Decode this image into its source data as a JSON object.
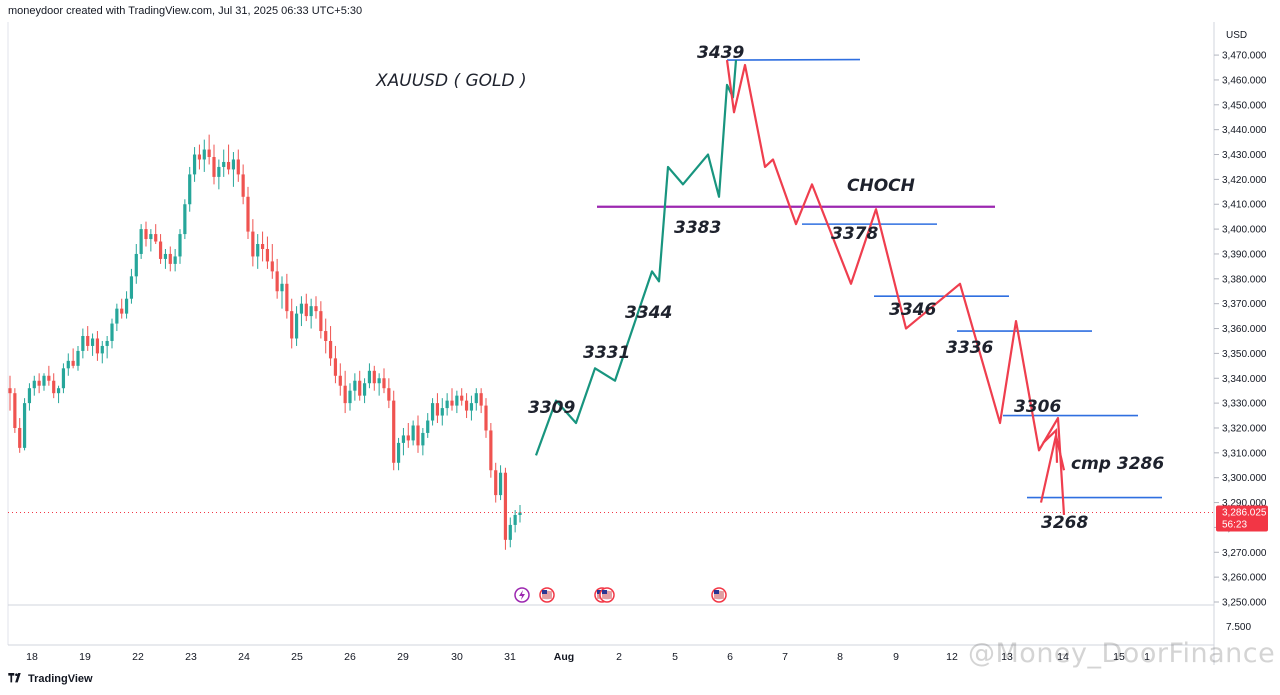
{
  "header": {
    "credit": "moneydoor created with TradingView.com, Jul 31, 2025 06:33 UTC+5:30"
  },
  "footer": {
    "brand": "TradingView"
  },
  "watermark": {
    "text": "@Money_DoorFinance"
  },
  "chart_data": {
    "type": "line",
    "symbol_title": "XAUUSD ( GOLD )",
    "currency": "USD",
    "y_ticks": [
      "3,470.000",
      "3,460.000",
      "3,450.000",
      "3,440.000",
      "3,430.000",
      "3,420.000",
      "3,410.000",
      "3,400.000",
      "3,390.000",
      "3,380.000",
      "3,370.000",
      "3,360.000",
      "3,350.000",
      "3,340.000",
      "3,330.000",
      "3,320.000",
      "3,310.000",
      "3,300.000",
      "3,290.000",
      "3,280.000",
      "3,270.000",
      "3,260.000",
      "3,250.000"
    ],
    "ylim": [
      3250,
      3470
    ],
    "x_ticks": [
      "18",
      "19",
      "22",
      "23",
      "24",
      "25",
      "26",
      "29",
      "30",
      "31",
      "Aug",
      "2",
      "5",
      "6",
      "7",
      "8",
      "9",
      "12",
      "13",
      "14",
      "15",
      "1"
    ],
    "volume_pane_label": "7.500",
    "current_price": {
      "value": "3,286.025",
      "countdown": "56:23",
      "price": 3286.025
    },
    "colors": {
      "up": "#26a69a",
      "down": "#ef5350",
      "projection_up": "#18957f",
      "projection_down": "#ef3e4e",
      "levels": "#2f6fe0",
      "choch": "#9c27b0",
      "price_line": "#f23645"
    },
    "candles_ohlc_note": "",
    "candles": [
      [
        3336,
        3341,
        3327,
        3334
      ],
      [
        3334,
        3336,
        3318,
        3320
      ],
      [
        3320,
        3324,
        3310,
        3312
      ],
      [
        3312,
        3332,
        3311,
        3330
      ],
      [
        3330,
        3338,
        3327,
        3336
      ],
      [
        3336,
        3341,
        3333,
        3339
      ],
      [
        3339,
        3342,
        3334,
        3337
      ],
      [
        3337,
        3342,
        3335,
        3341
      ],
      [
        3341,
        3345,
        3337,
        3339
      ],
      [
        3339,
        3342,
        3332,
        3334
      ],
      [
        3334,
        3337,
        3330,
        3336
      ],
      [
        3336,
        3346,
        3334,
        3344
      ],
      [
        3344,
        3350,
        3341,
        3347
      ],
      [
        3347,
        3352,
        3344,
        3345
      ],
      [
        3345,
        3353,
        3343,
        3351
      ],
      [
        3351,
        3360,
        3348,
        3357
      ],
      [
        3357,
        3361,
        3351,
        3353
      ],
      [
        3353,
        3358,
        3349,
        3356
      ],
      [
        3356,
        3359,
        3347,
        3350
      ],
      [
        3350,
        3355,
        3346,
        3353
      ],
      [
        3353,
        3357,
        3348,
        3355
      ],
      [
        3355,
        3364,
        3352,
        3362
      ],
      [
        3362,
        3370,
        3359,
        3368
      ],
      [
        3368,
        3372,
        3364,
        3366
      ],
      [
        3366,
        3375,
        3364,
        3372
      ],
      [
        3372,
        3384,
        3370,
        3381
      ],
      [
        3381,
        3394,
        3378,
        3390
      ],
      [
        3390,
        3402,
        3388,
        3400
      ],
      [
        3400,
        3403,
        3393,
        3396
      ],
      [
        3396,
        3400,
        3391,
        3398
      ],
      [
        3398,
        3402,
        3394,
        3395
      ],
      [
        3395,
        3398,
        3386,
        3388
      ],
      [
        3388,
        3392,
        3384,
        3390
      ],
      [
        3390,
        3393,
        3383,
        3386
      ],
      [
        3386,
        3392,
        3383,
        3389
      ],
      [
        3389,
        3400,
        3386,
        3398
      ],
      [
        3398,
        3412,
        3396,
        3410
      ],
      [
        3410,
        3425,
        3407,
        3422
      ],
      [
        3422,
        3433,
        3419,
        3430
      ],
      [
        3430,
        3434,
        3424,
        3428
      ],
      [
        3428,
        3436,
        3423,
        3432
      ],
      [
        3432,
        3438,
        3426,
        3429
      ],
      [
        3429,
        3434,
        3418,
        3421
      ],
      [
        3421,
        3428,
        3416,
        3425
      ],
      [
        3425,
        3432,
        3421,
        3427
      ],
      [
        3427,
        3434,
        3422,
        3424
      ],
      [
        3424,
        3431,
        3417,
        3428
      ],
      [
        3428,
        3432,
        3419,
        3422
      ],
      [
        3422,
        3426,
        3410,
        3413
      ],
      [
        3413,
        3417,
        3396,
        3399
      ],
      [
        3399,
        3404,
        3385,
        3389
      ],
      [
        3389,
        3398,
        3384,
        3394
      ],
      [
        3394,
        3399,
        3387,
        3392
      ],
      [
        3392,
        3397,
        3384,
        3387
      ],
      [
        3387,
        3394,
        3380,
        3383
      ],
      [
        3383,
        3388,
        3372,
        3375
      ],
      [
        3375,
        3381,
        3368,
        3378
      ],
      [
        3378,
        3382,
        3364,
        3367
      ],
      [
        3367,
        3372,
        3352,
        3356
      ],
      [
        3356,
        3369,
        3353,
        3366
      ],
      [
        3366,
        3373,
        3361,
        3370
      ],
      [
        3370,
        3374,
        3363,
        3365
      ],
      [
        3365,
        3372,
        3360,
        3369
      ],
      [
        3369,
        3373,
        3364,
        3367
      ],
      [
        3367,
        3371,
        3356,
        3359
      ],
      [
        3359,
        3364,
        3350,
        3355
      ],
      [
        3355,
        3361,
        3345,
        3348
      ],
      [
        3348,
        3353,
        3338,
        3341
      ],
      [
        3341,
        3346,
        3333,
        3337
      ],
      [
        3337,
        3343,
        3326,
        3330
      ],
      [
        3330,
        3338,
        3327,
        3335
      ],
      [
        3335,
        3342,
        3331,
        3339
      ],
      [
        3339,
        3343,
        3331,
        3333
      ],
      [
        3333,
        3340,
        3330,
        3338
      ],
      [
        3338,
        3346,
        3336,
        3343
      ],
      [
        3343,
        3345,
        3335,
        3338
      ],
      [
        3338,
        3342,
        3333,
        3340
      ],
      [
        3340,
        3344,
        3334,
        3336
      ],
      [
        3336,
        3340,
        3328,
        3331
      ],
      [
        3331,
        3335,
        3303,
        3306
      ],
      [
        3306,
        3316,
        3303,
        3314
      ],
      [
        3314,
        3320,
        3309,
        3317
      ],
      [
        3317,
        3322,
        3312,
        3315
      ],
      [
        3315,
        3323,
        3313,
        3321
      ],
      [
        3321,
        3325,
        3310,
        3313
      ],
      [
        3313,
        3320,
        3309,
        3318
      ],
      [
        3318,
        3326,
        3316,
        3323
      ],
      [
        3323,
        3332,
        3321,
        3330
      ],
      [
        3330,
        3334,
        3322,
        3325
      ],
      [
        3325,
        3332,
        3321,
        3328
      ],
      [
        3328,
        3334,
        3325,
        3331
      ],
      [
        3331,
        3336,
        3327,
        3329
      ],
      [
        3329,
        3335,
        3326,
        3333
      ],
      [
        3333,
        3336,
        3329,
        3331
      ],
      [
        3331,
        3334,
        3324,
        3327
      ],
      [
        3327,
        3333,
        3323,
        3330
      ],
      [
        3330,
        3336,
        3327,
        3334
      ],
      [
        3334,
        3336,
        3326,
        3329
      ],
      [
        3329,
        3332,
        3316,
        3319
      ],
      [
        3319,
        3322,
        3300,
        3303
      ],
      [
        3303,
        3306,
        3290,
        3293
      ],
      [
        3293,
        3305,
        3291,
        3302
      ],
      [
        3302,
        3304,
        3271,
        3275
      ],
      [
        3275,
        3284,
        3272,
        3281
      ],
      [
        3281,
        3287,
        3278,
        3285
      ],
      [
        3285,
        3289,
        3282,
        3286
      ]
    ],
    "projection_up_path": [
      3309,
      3331,
      3322,
      3344,
      3339,
      3383,
      3379,
      3425,
      3418,
      3430,
      3413,
      3458,
      3453,
      3468
    ],
    "projection_down_path": [
      3468,
      3447,
      3466,
      3425,
      3428,
      3402,
      3418,
      3378,
      3408,
      3360,
      3378,
      3322,
      3363,
      3311,
      3324,
      3285,
      3315,
      3310
    ],
    "annotations": [
      "3439",
      "3383",
      "3378",
      "CHOCH",
      "3344",
      "3331",
      "3309",
      "3346",
      "3336",
      "3306",
      "cmp 3286",
      "3268"
    ],
    "levels": [
      {
        "label": "3439",
        "price": 3468
      },
      {
        "label": "CHOCH",
        "price": 3409
      },
      {
        "label": "3378",
        "price": 3402
      },
      {
        "label": "3346",
        "price": 3373
      },
      {
        "label": "3336",
        "price": 3359
      },
      {
        "label": "3306",
        "price": 3325
      },
      {
        "label": "3268",
        "price": 3292
      }
    ],
    "event_icons": [
      "flash-icon",
      "us-flag-icon",
      "us-flag-icon",
      "us-flag-icon",
      "us-flag-icon"
    ]
  }
}
